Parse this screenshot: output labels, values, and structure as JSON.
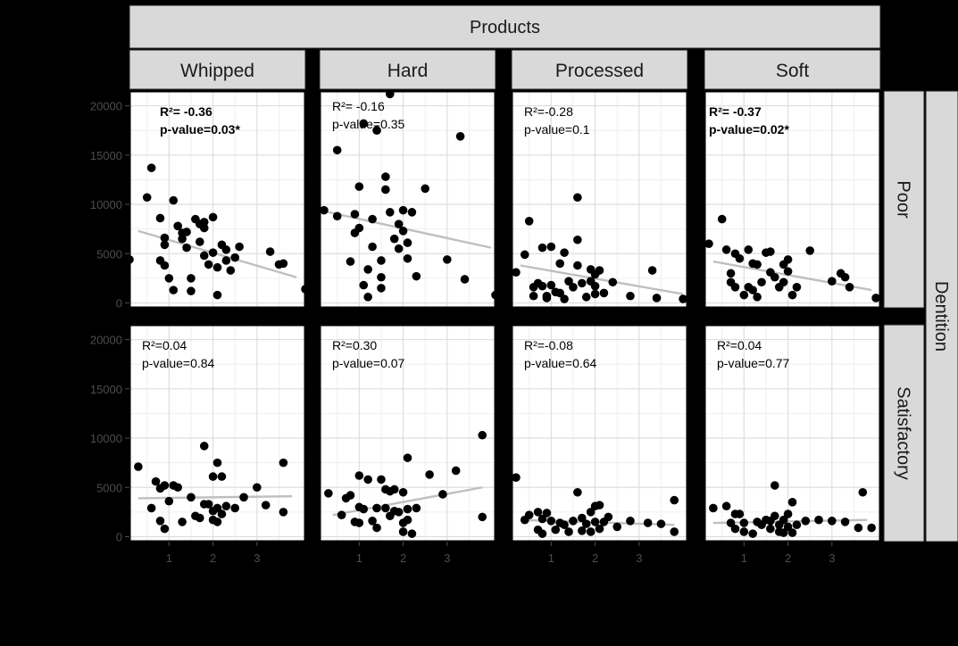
{
  "chart_data": {
    "type": "scatter",
    "title": "",
    "facet_col_title": "Products",
    "facet_row_title": "Dentition",
    "columns": [
      "Whipped",
      "Hard",
      "Processed",
      "Soft"
    ],
    "rows": [
      "Poor",
      "Satisfactory"
    ],
    "xlim": [
      0.1,
      4.1
    ],
    "ylim": [
      -500,
      21500
    ],
    "x_ticks": [
      1,
      2,
      3
    ],
    "x_tick_labels": [
      "1",
      "2",
      "3"
    ],
    "y_ticks": [
      0,
      5000,
      10000,
      15000,
      20000
    ],
    "y_tick_labels": [
      "0",
      "5000",
      "10000",
      "15000",
      "20000"
    ],
    "grid": true,
    "point_color": "#000000",
    "fit_line_color": "#bfbfbf",
    "panel_border_color": "#000000",
    "strip_fill": "#d9d9d9",
    "panels": [
      {
        "row": "Poor",
        "col": "Whipped",
        "r2_label": "R²= -0.36",
        "p_label": "p-value=0.03*",
        "bold": true,
        "fit": [
          [
            0.3,
            7300
          ],
          [
            3.9,
            2600
          ]
        ],
        "points": [
          [
            0.1,
            4400
          ],
          [
            0.5,
            10700
          ],
          [
            0.6,
            13700
          ],
          [
            0.8,
            8600
          ],
          [
            0.8,
            4300
          ],
          [
            0.9,
            6600
          ],
          [
            0.9,
            5900
          ],
          [
            0.9,
            3800
          ],
          [
            1.0,
            2500
          ],
          [
            1.1,
            10400
          ],
          [
            1.1,
            1300
          ],
          [
            1.2,
            7800
          ],
          [
            1.3,
            7100
          ],
          [
            1.3,
            6500
          ],
          [
            1.4,
            7200
          ],
          [
            1.4,
            5600
          ],
          [
            1.5,
            2500
          ],
          [
            1.5,
            1200
          ],
          [
            1.6,
            8500
          ],
          [
            1.7,
            8000
          ],
          [
            1.7,
            6200
          ],
          [
            1.8,
            8200
          ],
          [
            1.8,
            7600
          ],
          [
            1.8,
            4800
          ],
          [
            1.9,
            3900
          ],
          [
            2.0,
            8700
          ],
          [
            2.0,
            5100
          ],
          [
            2.1,
            3600
          ],
          [
            2.1,
            800
          ],
          [
            2.2,
            5900
          ],
          [
            2.3,
            5400
          ],
          [
            2.3,
            4300
          ],
          [
            2.4,
            3300
          ],
          [
            2.5,
            4600
          ],
          [
            2.6,
            5700
          ],
          [
            3.3,
            5200
          ],
          [
            3.5,
            3900
          ],
          [
            3.6,
            4000
          ],
          [
            4.1,
            1400
          ]
        ]
      },
      {
        "row": "Poor",
        "col": "Hard",
        "r2_label": "R²= -0.16",
        "p_label": "p-value=0.35",
        "bold": false,
        "fit": [
          [
            0.2,
            9300
          ],
          [
            4.0,
            5600
          ]
        ],
        "points": [
          [
            0.2,
            9400
          ],
          [
            0.5,
            8800
          ],
          [
            0.5,
            15500
          ],
          [
            0.8,
            4200
          ],
          [
            0.9,
            9000
          ],
          [
            0.9,
            7100
          ],
          [
            1.0,
            11800
          ],
          [
            1.0,
            7600
          ],
          [
            1.1,
            18200
          ],
          [
            1.1,
            1800
          ],
          [
            1.2,
            3400
          ],
          [
            1.2,
            600
          ],
          [
            1.3,
            8500
          ],
          [
            1.3,
            5700
          ],
          [
            1.4,
            17500
          ],
          [
            1.5,
            4300
          ],
          [
            1.5,
            2600
          ],
          [
            1.5,
            1500
          ],
          [
            1.6,
            12800
          ],
          [
            1.6,
            11500
          ],
          [
            1.7,
            21200
          ],
          [
            1.7,
            9200
          ],
          [
            1.8,
            6500
          ],
          [
            1.9,
            8000
          ],
          [
            1.9,
            5500
          ],
          [
            2.0,
            9400
          ],
          [
            2.0,
            7300
          ],
          [
            2.1,
            6100
          ],
          [
            2.1,
            4500
          ],
          [
            2.2,
            9200
          ],
          [
            2.3,
            2700
          ],
          [
            2.5,
            11600
          ],
          [
            3.0,
            4400
          ],
          [
            3.3,
            16900
          ],
          [
            3.4,
            2400
          ],
          [
            4.1,
            800
          ]
        ]
      },
      {
        "row": "Poor",
        "col": "Processed",
        "r2_label": "R²=-0.28",
        "p_label": "p-value=0.1",
        "bold": false,
        "fit": [
          [
            0.3,
            3800
          ],
          [
            4.0,
            900
          ]
        ],
        "points": [
          [
            0.2,
            3100
          ],
          [
            0.4,
            4900
          ],
          [
            0.5,
            8300
          ],
          [
            0.6,
            1600
          ],
          [
            0.6,
            700
          ],
          [
            0.7,
            2000
          ],
          [
            0.8,
            5600
          ],
          [
            0.8,
            1700
          ],
          [
            0.9,
            700
          ],
          [
            0.9,
            500
          ],
          [
            1.0,
            5700
          ],
          [
            1.0,
            1800
          ],
          [
            1.1,
            1100
          ],
          [
            1.2,
            4000
          ],
          [
            1.2,
            1000
          ],
          [
            1.3,
            5100
          ],
          [
            1.3,
            400
          ],
          [
            1.4,
            2200
          ],
          [
            1.5,
            1600
          ],
          [
            1.6,
            10700
          ],
          [
            1.6,
            6400
          ],
          [
            1.6,
            3800
          ],
          [
            1.7,
            2000
          ],
          [
            1.8,
            600
          ],
          [
            1.9,
            3400
          ],
          [
            1.9,
            2200
          ],
          [
            2.0,
            2900
          ],
          [
            2.0,
            1700
          ],
          [
            2.0,
            900
          ],
          [
            2.1,
            3300
          ],
          [
            2.2,
            1000
          ],
          [
            2.4,
            2100
          ],
          [
            2.8,
            700
          ],
          [
            3.3,
            3300
          ],
          [
            3.4,
            500
          ],
          [
            4.0,
            400
          ]
        ]
      },
      {
        "row": "Poor",
        "col": "Soft",
        "r2_label": "R²= -0.37",
        "p_label": "p-value=0.02*",
        "bold": true,
        "fit": [
          [
            0.3,
            4200
          ],
          [
            3.9,
            1300
          ]
        ],
        "points": [
          [
            0.2,
            6000
          ],
          [
            0.5,
            8500
          ],
          [
            0.6,
            5400
          ],
          [
            0.7,
            3000
          ],
          [
            0.7,
            2100
          ],
          [
            0.8,
            5000
          ],
          [
            0.8,
            1600
          ],
          [
            0.9,
            4500
          ],
          [
            1.0,
            800
          ],
          [
            1.1,
            5400
          ],
          [
            1.1,
            1600
          ],
          [
            1.2,
            4000
          ],
          [
            1.2,
            1300
          ],
          [
            1.3,
            3900
          ],
          [
            1.3,
            600
          ],
          [
            1.4,
            2100
          ],
          [
            1.5,
            5100
          ],
          [
            1.6,
            5200
          ],
          [
            1.6,
            3100
          ],
          [
            1.7,
            2600
          ],
          [
            1.8,
            1600
          ],
          [
            1.9,
            3900
          ],
          [
            1.9,
            2100
          ],
          [
            2.0,
            4400
          ],
          [
            2.0,
            3200
          ],
          [
            2.1,
            800
          ],
          [
            2.2,
            1600
          ],
          [
            2.5,
            5300
          ],
          [
            3.0,
            2200
          ],
          [
            3.2,
            3000
          ],
          [
            3.3,
            2600
          ],
          [
            3.4,
            1600
          ],
          [
            4.0,
            500
          ]
        ]
      },
      {
        "row": "Satisfactory",
        "col": "Whipped",
        "r2_label": "R²=0.04",
        "p_label": "p-value=0.84",
        "bold": false,
        "fit": [
          [
            0.3,
            3900
          ],
          [
            3.8,
            4100
          ]
        ],
        "points": [
          [
            0.3,
            7100
          ],
          [
            0.6,
            2900
          ],
          [
            0.7,
            5600
          ],
          [
            0.8,
            4900
          ],
          [
            0.8,
            1600
          ],
          [
            0.9,
            5200
          ],
          [
            0.9,
            800
          ],
          [
            1.0,
            3600
          ],
          [
            1.1,
            5200
          ],
          [
            1.2,
            5000
          ],
          [
            1.3,
            1500
          ],
          [
            1.5,
            4000
          ],
          [
            1.6,
            2100
          ],
          [
            1.7,
            1900
          ],
          [
            1.8,
            9200
          ],
          [
            1.8,
            3300
          ],
          [
            1.9,
            3300
          ],
          [
            2.0,
            6100
          ],
          [
            2.0,
            2600
          ],
          [
            2.0,
            1700
          ],
          [
            2.1,
            7500
          ],
          [
            2.1,
            2900
          ],
          [
            2.1,
            1500
          ],
          [
            2.2,
            6100
          ],
          [
            2.2,
            2300
          ],
          [
            2.3,
            3100
          ],
          [
            2.5,
            2900
          ],
          [
            2.7,
            4000
          ],
          [
            3.0,
            5000
          ],
          [
            3.2,
            3200
          ],
          [
            3.6,
            7500
          ],
          [
            3.6,
            2500
          ]
        ]
      },
      {
        "row": "Satisfactory",
        "col": "Hard",
        "r2_label": "R²=0.30",
        "p_label": "p-value=0.07",
        "bold": false,
        "fit": [
          [
            0.4,
            2200
          ],
          [
            3.8,
            5000
          ]
        ],
        "points": [
          [
            0.3,
            4400
          ],
          [
            0.6,
            2200
          ],
          [
            0.7,
            3900
          ],
          [
            0.8,
            4200
          ],
          [
            0.9,
            1500
          ],
          [
            1.0,
            6200
          ],
          [
            1.0,
            3000
          ],
          [
            1.0,
            1400
          ],
          [
            1.1,
            2800
          ],
          [
            1.2,
            5800
          ],
          [
            1.3,
            1600
          ],
          [
            1.4,
            2900
          ],
          [
            1.4,
            900
          ],
          [
            1.5,
            5800
          ],
          [
            1.6,
            4800
          ],
          [
            1.6,
            2900
          ],
          [
            1.7,
            4600
          ],
          [
            1.7,
            2100
          ],
          [
            1.8,
            4800
          ],
          [
            1.8,
            2600
          ],
          [
            1.9,
            2500
          ],
          [
            2.0,
            4500
          ],
          [
            2.0,
            1400
          ],
          [
            2.0,
            500
          ],
          [
            2.1,
            8000
          ],
          [
            2.1,
            2800
          ],
          [
            2.1,
            1700
          ],
          [
            2.2,
            300
          ],
          [
            2.3,
            2900
          ],
          [
            2.6,
            6300
          ],
          [
            2.9,
            4300
          ],
          [
            3.2,
            6700
          ],
          [
            3.8,
            10300
          ],
          [
            3.8,
            2000
          ]
        ]
      },
      {
        "row": "Satisfactory",
        "col": "Processed",
        "r2_label": "R²=-0.08",
        "p_label": "p-value=0.64",
        "bold": false,
        "fit": [
          [
            0.3,
            1700
          ],
          [
            3.8,
            1200
          ]
        ],
        "points": [
          [
            0.2,
            6000
          ],
          [
            0.4,
            1700
          ],
          [
            0.5,
            2200
          ],
          [
            0.7,
            2500
          ],
          [
            0.7,
            700
          ],
          [
            0.8,
            1800
          ],
          [
            0.8,
            300
          ],
          [
            0.9,
            2400
          ],
          [
            1.0,
            1600
          ],
          [
            1.1,
            700
          ],
          [
            1.2,
            1400
          ],
          [
            1.3,
            1200
          ],
          [
            1.4,
            500
          ],
          [
            1.5,
            1600
          ],
          [
            1.6,
            4500
          ],
          [
            1.7,
            600
          ],
          [
            1.7,
            1900
          ],
          [
            1.8,
            1300
          ],
          [
            1.9,
            2500
          ],
          [
            1.9,
            500
          ],
          [
            2.0,
            3100
          ],
          [
            2.0,
            1500
          ],
          [
            2.1,
            3200
          ],
          [
            2.1,
            800
          ],
          [
            2.2,
            1500
          ],
          [
            2.3,
            2000
          ],
          [
            2.5,
            1000
          ],
          [
            2.8,
            1600
          ],
          [
            3.2,
            1400
          ],
          [
            3.5,
            1300
          ],
          [
            3.8,
            3700
          ],
          [
            3.8,
            500
          ]
        ]
      },
      {
        "row": "Satisfactory",
        "col": "Soft",
        "r2_label": "R²=0.04",
        "p_label": "p-value=0.77",
        "bold": false,
        "fit": [
          [
            0.3,
            1400
          ],
          [
            3.8,
            1700
          ]
        ],
        "points": [
          [
            0.3,
            2900
          ],
          [
            0.6,
            3100
          ],
          [
            0.7,
            1400
          ],
          [
            0.8,
            2300
          ],
          [
            0.8,
            800
          ],
          [
            0.9,
            2300
          ],
          [
            1.0,
            500
          ],
          [
            1.0,
            1400
          ],
          [
            1.2,
            300
          ],
          [
            1.3,
            1500
          ],
          [
            1.4,
            1200
          ],
          [
            1.5,
            1700
          ],
          [
            1.6,
            800
          ],
          [
            1.6,
            1600
          ],
          [
            1.7,
            5200
          ],
          [
            1.7,
            2100
          ],
          [
            1.8,
            500
          ],
          [
            1.8,
            1200
          ],
          [
            1.9,
            1700
          ],
          [
            1.9,
            400
          ],
          [
            2.0,
            1000
          ],
          [
            2.0,
            2300
          ],
          [
            2.1,
            3500
          ],
          [
            2.1,
            400
          ],
          [
            2.2,
            1200
          ],
          [
            2.4,
            1600
          ],
          [
            2.7,
            1700
          ],
          [
            3.0,
            1600
          ],
          [
            3.3,
            1500
          ],
          [
            3.6,
            900
          ],
          [
            3.7,
            4500
          ],
          [
            3.9,
            900
          ]
        ]
      }
    ]
  }
}
